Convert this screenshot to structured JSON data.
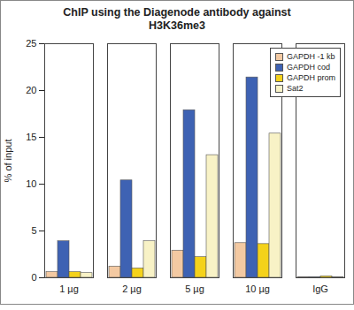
{
  "chart_data": {
    "type": "bar",
    "title": "ChIP using the Diagenode antibody against H3K36me3",
    "y_label": "% of input",
    "categories": [
      "1 µg",
      "2 µg",
      "5 µg",
      "10 µg",
      "IgG"
    ],
    "series": [
      {
        "name": "GAPDH -1 kb",
        "color": "#f3c9a2",
        "values": [
          0.6,
          1.2,
          2.9,
          3.7,
          0.05
        ]
      },
      {
        "name": "GAPDH cod",
        "color": "#3e62b3",
        "values": [
          3.9,
          10.4,
          17.9,
          21.4,
          0.05
        ]
      },
      {
        "name": "GAPDH prom",
        "color": "#f4d21a",
        "values": [
          0.6,
          1.0,
          2.2,
          3.6,
          0.15
        ]
      },
      {
        "name": "Sat2",
        "color": "#f8f2c6",
        "values": [
          0.5,
          3.9,
          13.1,
          15.4,
          0.05
        ]
      }
    ],
    "ylim": [
      0,
      25
    ],
    "yticks": [
      0,
      5,
      10,
      15,
      20,
      25
    ],
    "grid": false,
    "stacked": false,
    "legend": "top-right"
  }
}
